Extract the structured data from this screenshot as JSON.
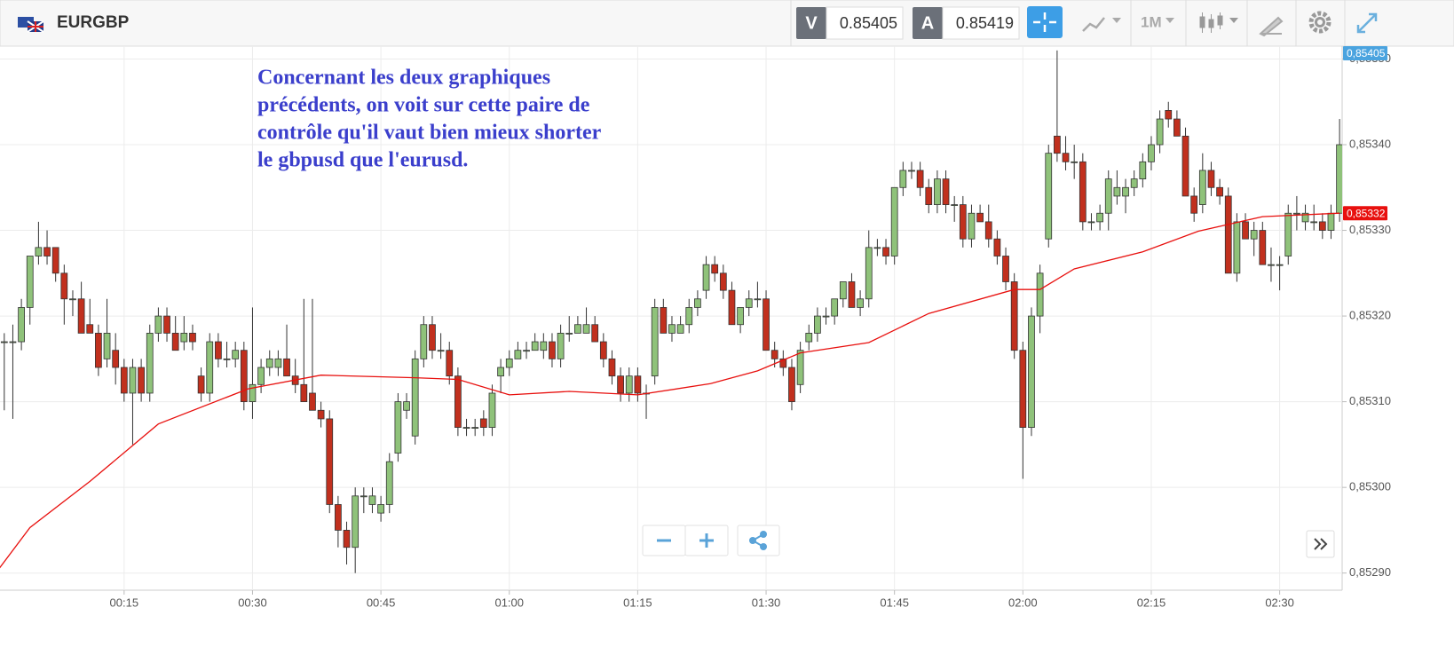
{
  "header": {
    "symbol": "EURGBP",
    "bid_label": "V",
    "bid": "0.85405",
    "ask_label": "A",
    "ask": "0.85419",
    "timeframe": "1M"
  },
  "chart_data": {
    "type": "candlestick",
    "annotation": [
      "Concernant les deux graphiques",
      "précédents, on voit sur cette paire de",
      "contrôle qu'il vaut bien mieux shorter",
      "le gbpusd que l'eurusd."
    ],
    "up_color": "#8fc27a",
    "down_color": "#c1301e",
    "xlim": [
      0.5,
      157.3
    ],
    "ylim": [
      0.85288,
      0.853515
    ],
    "grid": true,
    "xticks": [
      {
        "value": 15,
        "label": "00:15"
      },
      {
        "value": 30,
        "label": "00:30"
      },
      {
        "value": 45,
        "label": "00:45"
      },
      {
        "value": 60,
        "label": "01:00"
      },
      {
        "value": 75,
        "label": "01:15"
      },
      {
        "value": 90,
        "label": "01:30"
      },
      {
        "value": 105,
        "label": "01:45"
      },
      {
        "value": 120,
        "label": "02:00"
      },
      {
        "value": 135,
        "label": "02:15"
      },
      {
        "value": 150,
        "label": "02:30"
      }
    ],
    "yticks": [
      {
        "value": 0.8529,
        "label": "0,85290"
      },
      {
        "value": 0.853,
        "label": "0,85300"
      },
      {
        "value": 0.8531,
        "label": "0,85310"
      },
      {
        "value": 0.8532,
        "label": "0,85320"
      },
      {
        "value": 0.8533,
        "label": "0,85330"
      },
      {
        "value": 0.8534,
        "label": "0,85340"
      },
      {
        "value": 0.8535,
        "label": "0,85350"
      }
    ],
    "x": [
      1,
      2,
      3,
      4,
      5,
      6,
      7,
      8,
      9,
      10,
      11,
      12,
      13,
      14,
      15,
      16,
      17,
      18,
      19,
      20,
      21,
      22,
      23,
      24,
      25,
      26,
      27,
      28,
      29,
      30,
      31,
      32,
      33,
      34,
      35,
      36,
      37,
      38,
      39,
      40,
      41,
      42,
      43,
      44,
      45,
      46,
      47,
      48,
      49,
      50,
      51,
      52,
      53,
      54,
      55,
      56,
      57,
      58,
      59,
      60,
      61,
      62,
      63,
      64,
      65,
      66,
      67,
      68,
      69,
      70,
      71,
      72,
      73,
      74,
      75,
      76,
      77,
      78,
      79,
      80,
      81,
      82,
      83,
      84,
      85,
      86,
      87,
      88,
      89,
      90,
      91,
      92,
      93,
      94,
      95,
      96,
      97,
      98,
      99,
      100,
      101,
      102,
      103,
      104,
      105,
      106,
      107,
      108,
      109,
      110,
      111,
      112,
      113,
      114,
      115,
      116,
      117,
      118,
      119,
      120,
      121,
      122,
      123,
      124,
      125,
      126,
      127,
      128,
      129,
      130,
      131,
      132,
      133,
      134,
      135,
      136,
      137,
      138,
      139,
      140,
      141,
      142,
      143,
      144,
      145,
      146,
      147,
      148,
      149,
      150,
      151,
      152,
      153,
      154,
      155,
      156,
      157
    ],
    "open": [
      0.85317,
      0.85317,
      0.85317,
      0.85321,
      0.85327,
      0.85328,
      0.85328,
      0.85325,
      0.85322,
      0.85322,
      0.85319,
      0.85318,
      0.85315,
      0.85316,
      0.85314,
      0.85311,
      0.85314,
      0.85311,
      0.85318,
      0.8532,
      0.85318,
      0.85317,
      0.85318,
      0.85313,
      0.85311,
      0.85317,
      0.85315,
      0.85315,
      0.85316,
      0.8531,
      0.85312,
      0.85314,
      0.85314,
      0.85315,
      0.85313,
      0.85312,
      0.85311,
      0.85309,
      0.85308,
      0.85298,
      0.85295,
      0.85293,
      0.85299,
      0.85298,
      0.85297,
      0.85298,
      0.85304,
      0.85309,
      0.85306,
      0.85315,
      0.85319,
      0.85316,
      0.85316,
      0.85313,
      0.85307,
      0.85307,
      0.85308,
      0.85307,
      0.85313,
      0.85314,
      0.85315,
      0.85316,
      0.85316,
      0.85316,
      0.85317,
      0.85315,
      0.85318,
      0.85318,
      0.85318,
      0.85319,
      0.85317,
      0.85315,
      0.85313,
      0.85311,
      0.85313,
      0.85311,
      0.85313,
      0.85321,
      0.85318,
      0.85318,
      0.85319,
      0.85321,
      0.85323,
      0.85326,
      0.85325,
      0.85323,
      0.85319,
      0.85321,
      0.85322,
      0.85322,
      0.85316,
      0.85315,
      0.85314,
      0.85312,
      0.85317,
      0.85318,
      0.8532,
      0.8532,
      0.85322,
      0.85324,
      0.85321,
      0.85322,
      0.85328,
      0.85328,
      0.85327,
      0.85335,
      0.85337,
      0.85337,
      0.85335,
      0.85333,
      0.85336,
      0.85333,
      0.85333,
      0.85329,
      0.85332,
      0.85331,
      0.85329,
      0.85327,
      0.85324,
      0.85316,
      0.85307,
      0.8532,
      0.85329,
      0.85341,
      0.85339,
      0.85338,
      0.85338,
      0.85331,
      0.85331,
      0.85332,
      0.85334,
      0.85334,
      0.85335,
      0.85336,
      0.85338,
      0.8534,
      0.85344,
      0.85343,
      0.85341,
      0.85334,
      0.85333,
      0.85337,
      0.85335,
      0.85334,
      0.85325,
      0.85331,
      0.85329,
      0.8533,
      0.85326,
      0.85326,
      0.85327,
      0.85332,
      0.85331,
      0.85331,
      0.85331,
      0.8533,
      0.85332
    ],
    "high": [
      0.85318,
      0.85319,
      0.85322,
      0.85327,
      0.85331,
      0.8533,
      0.85328,
      0.85326,
      0.85323,
      0.85324,
      0.85322,
      0.85319,
      0.85322,
      0.85318,
      0.85315,
      0.85315,
      0.85315,
      0.85319,
      0.85321,
      0.85321,
      0.8532,
      0.8532,
      0.85319,
      0.85314,
      0.85318,
      0.85318,
      0.85317,
      0.85317,
      0.85317,
      0.85321,
      0.85315,
      0.85316,
      0.85316,
      0.85319,
      0.85315,
      0.85322,
      0.85322,
      0.8531,
      0.85309,
      0.85299,
      0.85296,
      0.853,
      0.853,
      0.853,
      0.85299,
      0.85304,
      0.85311,
      0.85311,
      0.85316,
      0.8532,
      0.8532,
      0.85318,
      0.85317,
      0.85314,
      0.85308,
      0.85308,
      0.85309,
      0.85312,
      0.85315,
      0.85316,
      0.85317,
      0.85317,
      0.85318,
      0.85318,
      0.85318,
      0.85319,
      0.8532,
      0.8532,
      0.85321,
      0.8532,
      0.85318,
      0.85316,
      0.85314,
      0.85314,
      0.85314,
      0.85312,
      0.85322,
      0.85322,
      0.8532,
      0.8532,
      0.85322,
      0.85323,
      0.85327,
      0.85327,
      0.85326,
      0.85324,
      0.85321,
      0.85323,
      0.85324,
      0.85323,
      0.85317,
      0.85316,
      0.85315,
      0.85317,
      0.85319,
      0.85321,
      0.85321,
      0.85322,
      0.85324,
      0.85325,
      0.85323,
      0.8533,
      0.85329,
      0.85329,
      0.85335,
      0.85338,
      0.85338,
      0.85338,
      0.85336,
      0.85337,
      0.85337,
      0.85334,
      0.85334,
      0.85333,
      0.85333,
      0.85333,
      0.8533,
      0.85328,
      0.85325,
      0.85317,
      0.85321,
      0.85326,
      0.8534,
      0.85351,
      0.85341,
      0.8534,
      0.85339,
      0.85332,
      0.85333,
      0.85337,
      0.85337,
      0.85336,
      0.85337,
      0.85339,
      0.85341,
      0.85344,
      0.85345,
      0.85344,
      0.85342,
      0.85335,
      0.85339,
      0.85338,
      0.85336,
      0.85335,
      0.85332,
      0.85332,
      0.85331,
      0.85331,
      0.85328,
      0.85327,
      0.85333,
      0.85334,
      0.85333,
      0.85333,
      0.85332,
      0.85333,
      0.85343
    ],
    "low": [
      0.85309,
      0.85308,
      0.85316,
      0.85319,
      0.85326,
      0.85326,
      0.85324,
      0.85319,
      0.8532,
      0.85318,
      0.85318,
      0.85313,
      0.85314,
      0.85312,
      0.8531,
      0.85305,
      0.8531,
      0.8531,
      0.85317,
      0.85317,
      0.85316,
      0.85316,
      0.85316,
      0.8531,
      0.8531,
      0.85314,
      0.85314,
      0.85314,
      0.85309,
      0.85308,
      0.85311,
      0.85313,
      0.85313,
      0.85313,
      0.85311,
      0.8531,
      0.85309,
      0.85307,
      0.85297,
      0.85293,
      0.85291,
      0.8529,
      0.85297,
      0.85297,
      0.85296,
      0.85297,
      0.85303,
      0.85308,
      0.85305,
      0.85314,
      0.85315,
      0.85315,
      0.85312,
      0.85306,
      0.85306,
      0.85306,
      0.85306,
      0.85306,
      0.85311,
      0.85313,
      0.85315,
      0.85315,
      0.85316,
      0.85315,
      0.85314,
      0.85314,
      0.85317,
      0.85318,
      0.85318,
      0.85317,
      0.85314,
      0.85312,
      0.8531,
      0.8531,
      0.8531,
      0.85308,
      0.85312,
      0.85318,
      0.85317,
      0.85318,
      0.85318,
      0.8532,
      0.85322,
      0.85324,
      0.85322,
      0.85319,
      0.85318,
      0.8532,
      0.85321,
      0.85316,
      0.85314,
      0.85313,
      0.85309,
      0.85311,
      0.85316,
      0.85317,
      0.85319,
      0.85319,
      0.85321,
      0.85321,
      0.8532,
      0.85321,
      0.85327,
      0.85326,
      0.85326,
      0.85334,
      0.85336,
      0.85334,
      0.85332,
      0.85332,
      0.85332,
      0.85331,
      0.85328,
      0.85328,
      0.85331,
      0.85328,
      0.85326,
      0.85323,
      0.85315,
      0.85301,
      0.85306,
      0.85318,
      0.85328,
      0.85338,
      0.85337,
      0.85336,
      0.8533,
      0.8533,
      0.8533,
      0.8533,
      0.85333,
      0.85332,
      0.85334,
      0.85335,
      0.85337,
      0.85339,
      0.85342,
      0.85341,
      0.85334,
      0.85331,
      0.85332,
      0.85334,
      0.85333,
      0.85325,
      0.85324,
      0.85329,
      0.85327,
      0.85326,
      0.85324,
      0.85323,
      0.85326,
      0.8533,
      0.8533,
      0.8533,
      0.85329,
      0.85329,
      0.85331
    ],
    "close": [
      0.85317,
      0.85317,
      0.85321,
      0.85327,
      0.85328,
      0.85327,
      0.85325,
      0.85322,
      0.85322,
      0.85318,
      0.85318,
      0.85314,
      0.85318,
      0.85314,
      0.85311,
      0.85314,
      0.85311,
      0.85318,
      0.8532,
      0.85318,
      0.85316,
      0.85318,
      0.85317,
      0.85311,
      0.85317,
      0.85315,
      0.85315,
      0.85316,
      0.8531,
      0.85312,
      0.85314,
      0.85315,
      0.85315,
      0.85313,
      0.85312,
      0.8531,
      0.85309,
      0.85308,
      0.85298,
      0.85295,
      0.85293,
      0.85299,
      0.85299,
      0.85299,
      0.85298,
      0.85303,
      0.8531,
      0.8531,
      0.85315,
      0.85319,
      0.85316,
      0.85316,
      0.85313,
      0.85307,
      0.85307,
      0.85307,
      0.85307,
      0.85311,
      0.85314,
      0.85315,
      0.85316,
      0.85316,
      0.85317,
      0.85317,
      0.85315,
      0.85318,
      0.85318,
      0.85319,
      0.85319,
      0.85317,
      0.85315,
      0.85313,
      0.85311,
      0.85313,
      0.85311,
      0.85311,
      0.85321,
      0.85318,
      0.85319,
      0.85319,
      0.85321,
      0.85322,
      0.85326,
      0.85325,
      0.85323,
      0.85319,
      0.85321,
      0.85322,
      0.85322,
      0.85316,
      0.85315,
      0.85314,
      0.8531,
      0.85316,
      0.85318,
      0.8532,
      0.8532,
      0.85322,
      0.85324,
      0.85321,
      0.85322,
      0.85328,
      0.85328,
      0.85327,
      0.85335,
      0.85337,
      0.85337,
      0.85335,
      0.85333,
      0.85336,
      0.85333,
      0.85333,
      0.85329,
      0.85332,
      0.85331,
      0.85329,
      0.85327,
      0.85324,
      0.85316,
      0.85307,
      0.8532,
      0.85325,
      0.85339,
      0.85339,
      0.85338,
      0.85338,
      0.85331,
      0.85331,
      0.85332,
      0.85336,
      0.85335,
      0.85335,
      0.85336,
      0.85338,
      0.8534,
      0.85343,
      0.85343,
      0.85341,
      0.85334,
      0.85332,
      0.85337,
      0.85335,
      0.85334,
      0.85325,
      0.85331,
      0.85329,
      0.8533,
      0.85326,
      0.85326,
      0.85326,
      0.85332,
      0.85332,
      0.85332,
      0.85331,
      0.8533,
      0.85332,
      0.8534
    ],
    "ma": {
      "color": "#e8100e",
      "x": [
        0,
        4,
        11,
        19,
        29.5,
        38,
        49,
        54,
        60,
        67,
        75,
        83.5,
        89,
        94,
        102,
        109,
        119,
        122,
        126,
        134,
        140.5,
        148,
        157
      ],
      "values": [
        0.8529,
        0.852953,
        0.853007,
        0.853074,
        0.853115,
        0.853131,
        0.853128,
        0.853126,
        0.853108,
        0.853112,
        0.853108,
        0.853121,
        0.853136,
        0.853157,
        0.853169,
        0.853203,
        0.853231,
        0.853231,
        0.853255,
        0.853275,
        0.853299,
        0.853316,
        0.85332
      ]
    },
    "price_tags": [
      {
        "value": 0.85405,
        "label": "0,85405",
        "color": "#4aa3df"
      },
      {
        "value": 0.85332,
        "label": "0,85332",
        "color": "#e8100e"
      }
    ]
  }
}
